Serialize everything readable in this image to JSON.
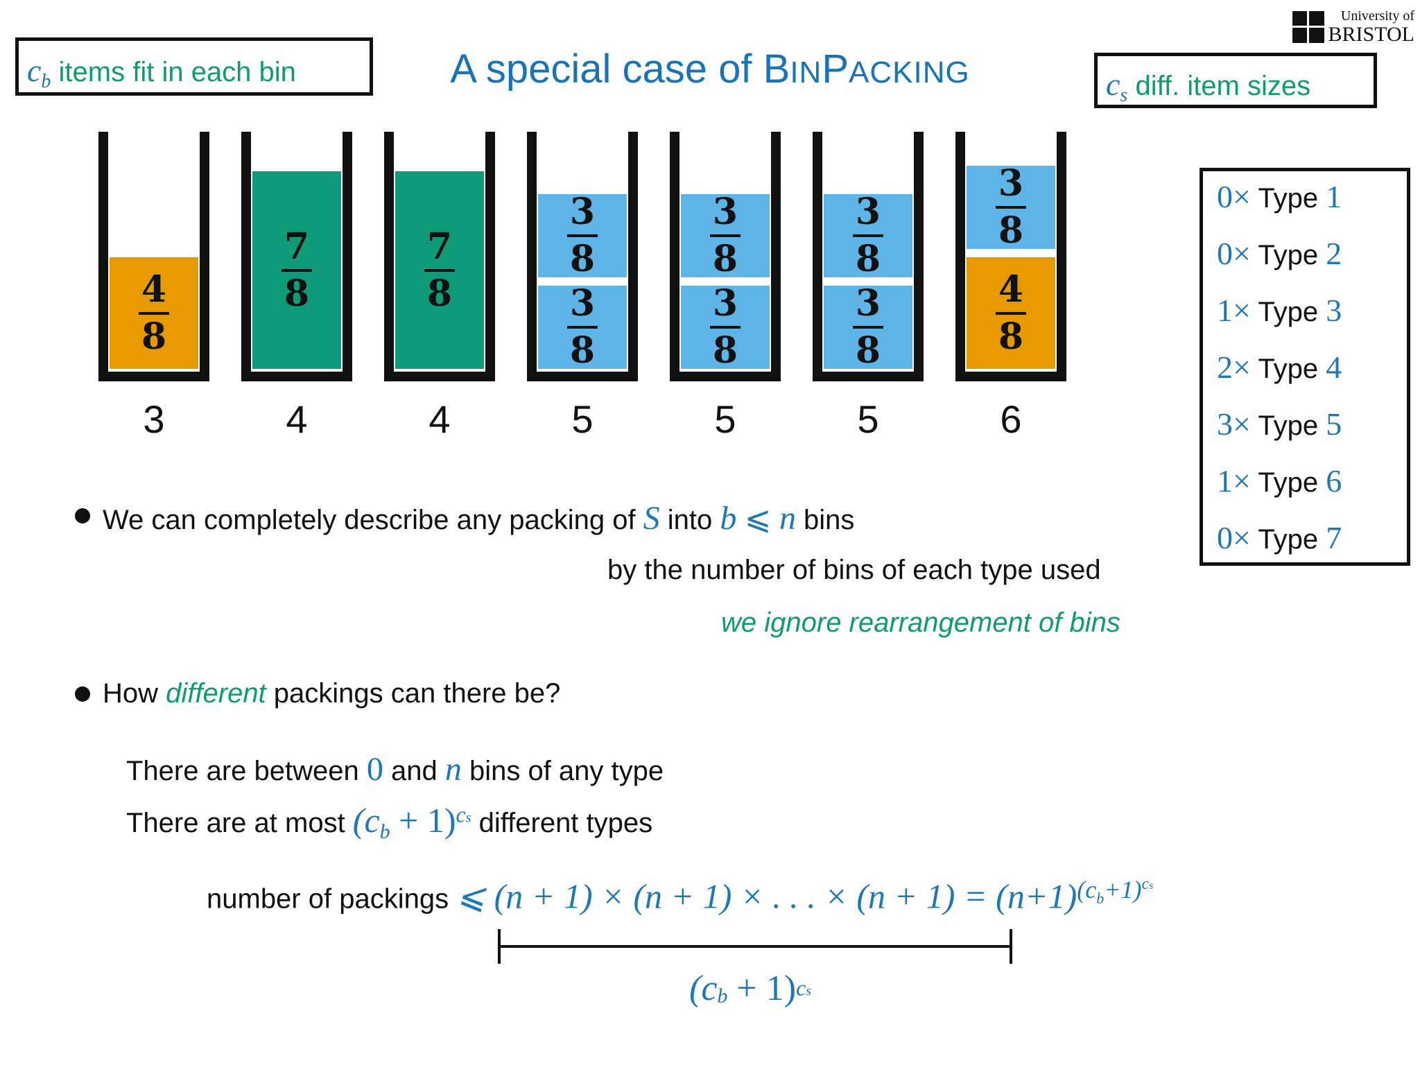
{
  "title": {
    "pre": "A special case of ",
    "word1_first": "B",
    "word1_rest": "IN",
    "word2_first": "P",
    "word2_rest": "ACKING"
  },
  "logo": {
    "line1": "University of",
    "line2": "BRISTOL"
  },
  "left_box": {
    "symbol": "c",
    "sub": "b",
    "text": " items fit in each bin"
  },
  "right_box": {
    "symbol": "c",
    "sub": "s",
    "text": " diff. item sizes"
  },
  "bins": [
    {
      "label": "3",
      "items": [
        {
          "num": "4",
          "den": "8",
          "color": "#e69a00"
        }
      ]
    },
    {
      "label": "4",
      "items": [
        {
          "num": "7",
          "den": "8",
          "color": "#0f9a7a"
        }
      ]
    },
    {
      "label": "4",
      "items": [
        {
          "num": "7",
          "den": "8",
          "color": "#0f9a7a"
        }
      ]
    },
    {
      "label": "5",
      "items": [
        {
          "num": "3",
          "den": "8",
          "color": "#5eb4e6"
        },
        {
          "num": "3",
          "den": "8",
          "color": "#5eb4e6"
        }
      ]
    },
    {
      "label": "5",
      "items": [
        {
          "num": "3",
          "den": "8",
          "color": "#5eb4e6"
        },
        {
          "num": "3",
          "den": "8",
          "color": "#5eb4e6"
        }
      ]
    },
    {
      "label": "5",
      "items": [
        {
          "num": "3",
          "den": "8",
          "color": "#5eb4e6"
        },
        {
          "num": "3",
          "den": "8",
          "color": "#5eb4e6"
        }
      ]
    },
    {
      "label": "6",
      "items": [
        {
          "num": "4",
          "den": "8",
          "color": "#e69a00"
        },
        {
          "num": "3",
          "den": "8",
          "color": "#5eb4e6"
        }
      ]
    }
  ],
  "types": [
    {
      "count": "0×",
      "word": " Type ",
      "n": "1"
    },
    {
      "count": "0×",
      "word": " Type ",
      "n": "2"
    },
    {
      "count": "1×",
      "word": " Type ",
      "n": "3"
    },
    {
      "count": "2×",
      "word": " Type ",
      "n": "4"
    },
    {
      "count": "3×",
      "word": " Type ",
      "n": "5"
    },
    {
      "count": "1×",
      "word": " Type ",
      "n": "6"
    },
    {
      "count": "0×",
      "word": " Type ",
      "n": "7"
    }
  ],
  "bullet1": {
    "t1": "We can completely describe any packing of ",
    "S": "S",
    "t2": " into ",
    "b": "b",
    "leq": " ⩽ ",
    "n": "n",
    "t3": " bins",
    "line2": "by the number of bins of each type used",
    "note": "we ignore rearrangement of bins"
  },
  "bullet2": {
    "t1": "How ",
    "em": "different",
    "t2": " packings can there be?"
  },
  "line_between": {
    "t1": "There are between ",
    "zero": "0",
    "t2": " and ",
    "n": "n",
    "t3": " bins of any type"
  },
  "line_atmost": {
    "t1": "There are at most ",
    "expr": "(c",
    "sub": "b",
    "expr2": " + 1)",
    "sup": "c",
    "supsub": "s",
    "t2": " different types"
  },
  "formula": {
    "label": "number of packings ",
    "rhs": "⩽ (n + 1) × (n + 1) × . . . × (n + 1) = (n+1)",
    "sup": "(c",
    "supsub": "b",
    "sup2": "+1)",
    "supsup": "c",
    "supsupsub": "s"
  },
  "brace": {
    "expr": "(c",
    "sub": "b",
    "expr2": " + 1)",
    "sup": "c",
    "supsub": "s"
  }
}
